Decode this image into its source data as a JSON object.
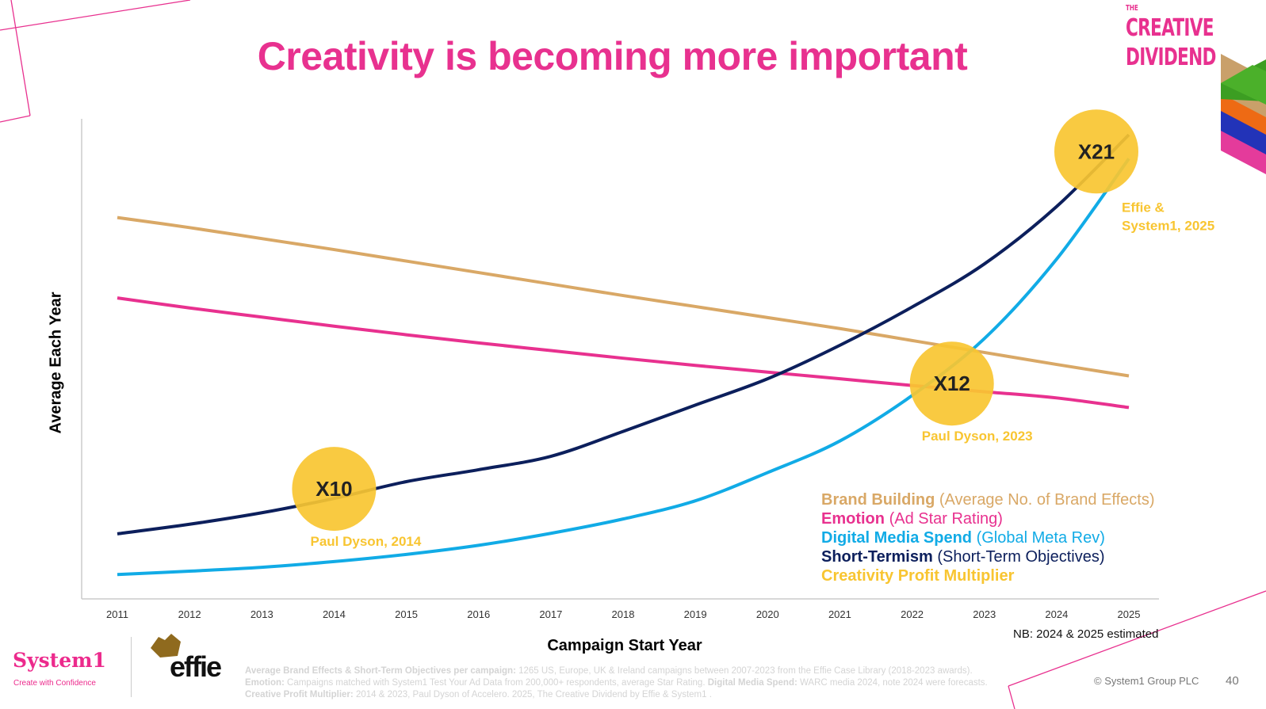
{
  "title": "Creativity is becoming more important",
  "brand_logo": {
    "line1": "THE",
    "line2": "CREATIVE",
    "line3": "DIVIDEND"
  },
  "chart_data": {
    "type": "line",
    "title": "Creativity is becoming more important",
    "xlabel": "Campaign Start Year",
    "ylabel": "Average Each Year",
    "y_unit": "relative index (no axis values shown)",
    "ylim": [
      0,
      100
    ],
    "x": [
      2011,
      2012,
      2013,
      2014,
      2015,
      2016,
      2017,
      2018,
      2019,
      2020,
      2021,
      2022,
      2023,
      2024,
      2025
    ],
    "x_tick_labels": [
      "2011",
      "2012",
      "2013",
      "2014",
      "2015",
      "2016",
      "2017",
      "2018",
      "2019",
      "2020",
      "2021",
      "2022",
      "2023",
      "2024",
      "2025"
    ],
    "series": [
      {
        "name": "Brand Building",
        "desc": "(Average No. of Brand Effects)",
        "color": "#D9A866",
        "values": [
          79.7,
          77.6,
          75.3,
          73.0,
          70.6,
          68.2,
          65.8,
          63.4,
          61.1,
          58.8,
          56.5,
          54.0,
          51.5,
          49.0,
          46.6
        ]
      },
      {
        "name": "Emotion",
        "desc": "(Ad Star Rating)",
        "color": "#E8318F",
        "values": [
          62.9,
          60.8,
          58.9,
          57.0,
          55.2,
          53.5,
          51.9,
          50.3,
          48.8,
          47.4,
          46.0,
          44.6,
          43.3,
          42.0,
          40.0
        ]
      },
      {
        "name": "Digital Media Spend",
        "desc": "(Global Meta Rev)",
        "color": "#11ABE6",
        "values": [
          5.1,
          5.8,
          6.6,
          7.8,
          9.3,
          11.2,
          13.7,
          16.7,
          20.5,
          26.4,
          33.0,
          42.5,
          54.4,
          71.0,
          92.0
        ]
      },
      {
        "name": "Short-Termism",
        "desc": "(Short-Term Objectives)",
        "color": "#0C1F5C",
        "values": [
          13.6,
          15.6,
          18.0,
          21.0,
          24.5,
          27.0,
          29.8,
          35.0,
          40.5,
          46.0,
          53.0,
          61.0,
          70.0,
          82.0,
          97.0
        ]
      },
      {
        "name": "Creativity Profit Multiplier",
        "desc": "",
        "color": "#F8C531",
        "points": [
          {
            "x": 2014,
            "y": 23,
            "label": "X10",
            "source": "Paul Dyson, 2014"
          },
          {
            "x": 2022.55,
            "y": 45,
            "label": "X12",
            "source": "Paul Dyson, 2023"
          },
          {
            "x": 2024.55,
            "y": 93.5,
            "label": "X21",
            "source": "Effie & System1, 2025"
          }
        ]
      }
    ],
    "legend_placement": "bottom-right",
    "grid": false,
    "note": "NB: 2024 & 2025 estimated"
  },
  "footnote": {
    "p1_bold": "Average Brand Effects & Short-Term Objectives per campaign:",
    "p1": " 1265 US, Europe, UK & Ireland campaigns between 2007-2023 from the Effie Case Library (2018-2023 awards). ",
    "p2_bold": "Emotion:",
    "p2": " Campaigns matched with System1 Test Your Ad Data from 200,000+ respondents, average Star Rating. ",
    "p3_bold": "Digital Media Spend:",
    "p3": " WARC media 2024, note 2024 were forecasts. ",
    "p4_bold": "Creative Profit Multiplier:",
    "p4": " 2014 & 2023, Paul Dyson of Accelero. 2025, The Creative Dividend by Effie & System1 ."
  },
  "logos": {
    "system1": "System1",
    "system1_tagline": "Create with Confidence",
    "effie": "effie"
  },
  "copyright": "© System1 Group PLC",
  "page_number": "40"
}
